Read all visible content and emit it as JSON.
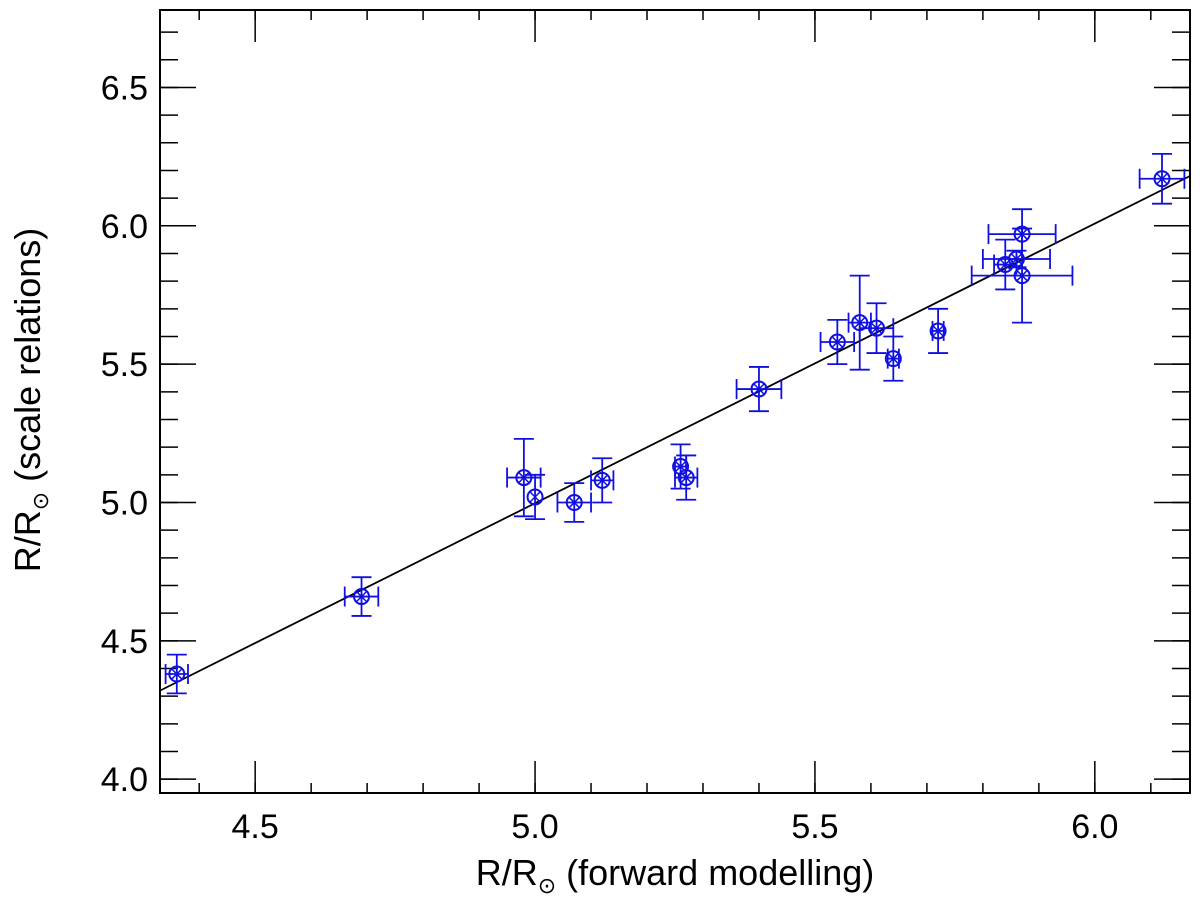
{
  "chart_data": {
    "type": "scatter",
    "title": "",
    "xlabel": "R/R",
    "xlabel_suffix": " (forward modelling)",
    "ylabel": "R/R",
    "ylabel_suffix": " (scale relations)",
    "subscript_symbol": "⊙",
    "xlim": [
      4.33,
      6.17
    ],
    "ylim": [
      3.95,
      6.78
    ],
    "x_ticks": [
      {
        "value": 4.5,
        "label": "4.5"
      },
      {
        "value": 5.0,
        "label": "5.0"
      },
      {
        "value": 5.5,
        "label": "5.5"
      },
      {
        "value": 6.0,
        "label": "6.0"
      }
    ],
    "y_ticks": [
      {
        "value": 4.0,
        "label": "4.0"
      },
      {
        "value": 4.5,
        "label": "4.5"
      },
      {
        "value": 5.0,
        "label": "5.0"
      },
      {
        "value": 5.5,
        "label": "5.5"
      },
      {
        "value": 6.0,
        "label": "6.0"
      },
      {
        "value": 6.5,
        "label": "6.5"
      }
    ],
    "x_minor_step": 0.1,
    "y_minor_step": 0.1,
    "marker": "circle-cross",
    "color": "#1010e0",
    "fit_line": {
      "x": [
        4.33,
        6.17
      ],
      "y": [
        4.32,
        6.18
      ],
      "color": "#000000"
    },
    "points": [
      {
        "x": 4.36,
        "y": 4.38,
        "xerr": 0.02,
        "yerr": 0.07
      },
      {
        "x": 4.69,
        "y": 4.66,
        "xerr": 0.03,
        "yerr": 0.07
      },
      {
        "x": 4.98,
        "y": 5.09,
        "xerr": 0.03,
        "yerr": 0.14
      },
      {
        "x": 5.0,
        "y": 5.02,
        "xerr": 0.0,
        "yerr": 0.08
      },
      {
        "x": 5.07,
        "y": 5.0,
        "xerr": 0.03,
        "yerr": 0.07
      },
      {
        "x": 5.12,
        "y": 5.08,
        "xerr": 0.02,
        "yerr": 0.08
      },
      {
        "x": 5.26,
        "y": 5.13,
        "xerr": 0.01,
        "yerr": 0.08
      },
      {
        "x": 5.27,
        "y": 5.09,
        "xerr": 0.02,
        "yerr": 0.08
      },
      {
        "x": 5.4,
        "y": 5.41,
        "xerr": 0.04,
        "yerr": 0.08
      },
      {
        "x": 5.54,
        "y": 5.58,
        "xerr": 0.03,
        "yerr": 0.08
      },
      {
        "x": 5.58,
        "y": 5.65,
        "xerr": 0.02,
        "yerr": 0.17
      },
      {
        "x": 5.61,
        "y": 5.63,
        "xerr": 0.03,
        "yerr": 0.09
      },
      {
        "x": 5.64,
        "y": 5.52,
        "xerr": 0.01,
        "yerr": 0.08
      },
      {
        "x": 5.72,
        "y": 5.62,
        "xerr": 0.01,
        "yerr": 0.08
      },
      {
        "x": 5.84,
        "y": 5.86,
        "xerr": 0.02,
        "yerr": 0.09
      },
      {
        "x": 5.86,
        "y": 5.88,
        "xerr": 0.06,
        "yerr": 0.03
      },
      {
        "x": 5.87,
        "y": 5.97,
        "xerr": 0.06,
        "yerr": 0.09
      },
      {
        "x": 5.87,
        "y": 5.82,
        "xerr": 0.09,
        "yerr": 0.17
      },
      {
        "x": 6.12,
        "y": 6.17,
        "xerr": 0.04,
        "yerr": 0.09
      }
    ]
  }
}
